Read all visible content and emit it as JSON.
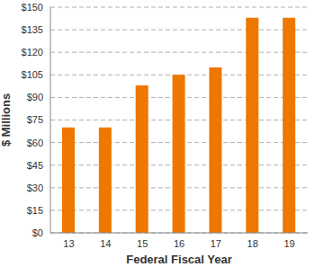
{
  "chart_data": {
    "type": "bar",
    "x_label": "Federal Fiscal Year",
    "y_label": "$ Millions",
    "categories": [
      "13",
      "14",
      "15",
      "16",
      "17",
      "18",
      "19"
    ],
    "values": [
      70,
      70,
      98,
      105,
      110,
      143,
      143
    ],
    "color": "#ee7700",
    "ylim": [
      0,
      150
    ],
    "yticks": [
      {
        "value": 0,
        "label": "$0"
      },
      {
        "value": 15,
        "label": "$15"
      },
      {
        "value": 30,
        "label": "$30"
      },
      {
        "value": 45,
        "label": "$45"
      },
      {
        "value": 60,
        "label": "$60"
      },
      {
        "value": 75,
        "label": "$75"
      },
      {
        "value": 90,
        "label": "$90"
      },
      {
        "value": 105,
        "label": "$105"
      },
      {
        "value": 120,
        "label": "$120"
      },
      {
        "value": 135,
        "label": "$135"
      },
      {
        "value": 150,
        "label": "$150"
      }
    ],
    "grid": true
  }
}
